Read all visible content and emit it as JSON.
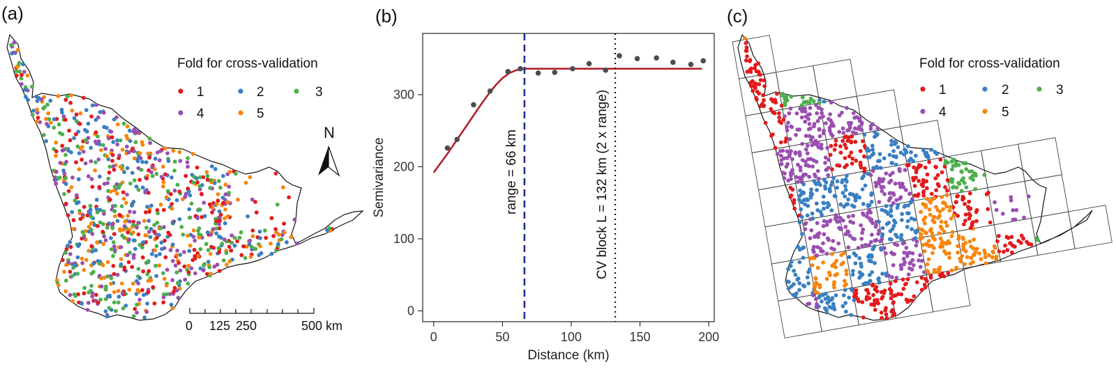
{
  "panels": {
    "a": "(a)",
    "b": "(b)",
    "c": "(c)"
  },
  "legend": {
    "title": "Fold for cross-validation",
    "folds": [
      {
        "label": "1",
        "color": "#e31a1c"
      },
      {
        "label": "2",
        "color": "#3a7fc1"
      },
      {
        "label": "3",
        "color": "#4daf4a"
      },
      {
        "label": "4",
        "color": "#9a4fb0"
      },
      {
        "label": "5",
        "color": "#f7860f"
      }
    ]
  },
  "map": {
    "north_label": "N",
    "scale_bar": {
      "ticks": [
        "0",
        "125",
        "250",
        "500"
      ],
      "unit": "km"
    }
  },
  "chart_data": {
    "type": "scatter",
    "xlabel": "Distance (km)",
    "ylabel": "Semivariance",
    "xlim": [
      -8,
      204
    ],
    "ylim": [
      -15,
      385
    ],
    "x_ticks": [
      0,
      50,
      100,
      150,
      200
    ],
    "y_ticks": [
      0,
      100,
      200,
      300
    ],
    "grid": false,
    "series": [
      {
        "kind": "points",
        "color": "#4d4d4d",
        "x": [
          10,
          17,
          29,
          41,
          54,
          63,
          76,
          88,
          101,
          113,
          125,
          135,
          148,
          162,
          174,
          187,
          196
        ],
        "y": [
          226,
          238,
          286,
          305,
          332,
          336,
          330,
          331,
          336,
          343,
          334,
          354,
          350,
          351,
          345,
          342,
          347
        ]
      },
      {
        "kind": "fitted_line",
        "color": "#b2202b",
        "x": [
          0,
          5,
          10,
          15,
          20,
          25,
          30,
          35,
          40,
          45,
          50,
          55,
          60,
          66,
          80,
          100,
          120,
          140,
          160,
          180,
          195
        ],
        "y": [
          192,
          205,
          218,
          232,
          246,
          260,
          274,
          288,
          301,
          313,
          323,
          330,
          334,
          336,
          336,
          336,
          336,
          336,
          336,
          336,
          336
        ]
      }
    ],
    "annotations": [
      {
        "label": "range = 66 km",
        "x": 66,
        "style": "dashed",
        "color": "#1f2f8f"
      },
      {
        "label": "CV block L = 132 km (2 x range)",
        "x": 132,
        "style": "dotted",
        "color": "#111111"
      }
    ]
  }
}
